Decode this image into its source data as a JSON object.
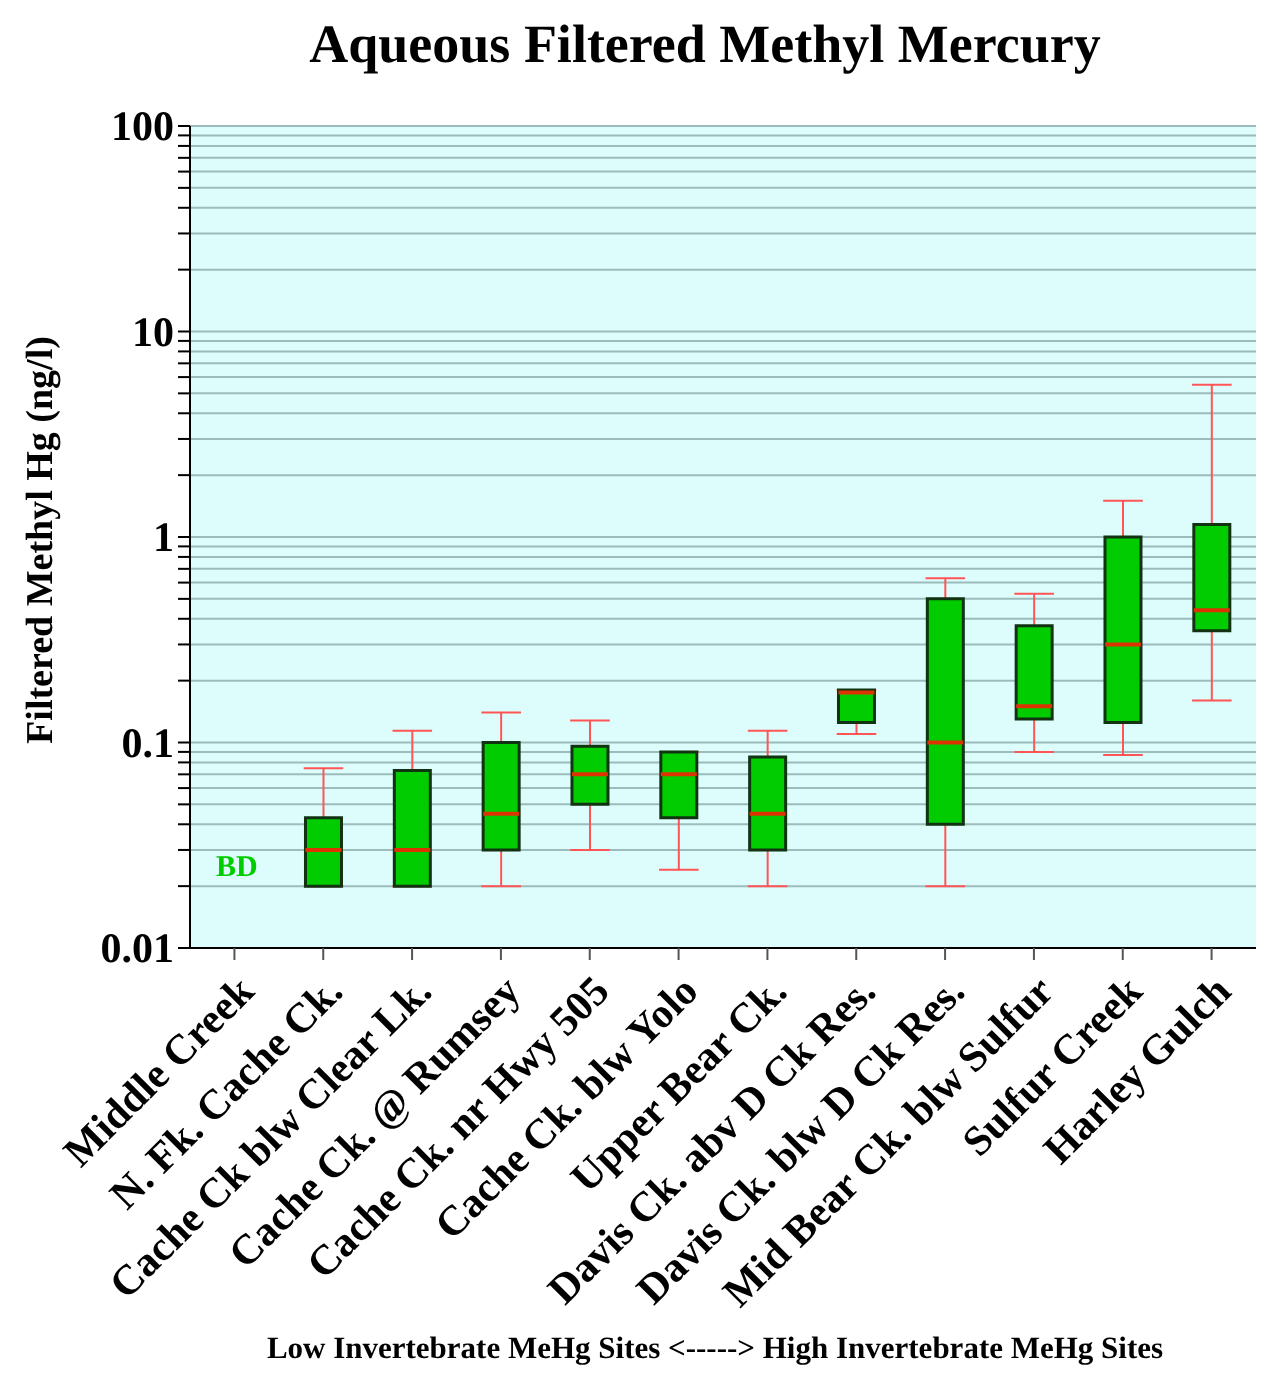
{
  "chart_data": {
    "type": "box",
    "title": "Aqueous Filtered Methyl Mercury",
    "xlabel": "Low Invertebrate MeHg Sites <-----> High Invertebrate MeHg Sites",
    "ylabel": "Filtered Methyl Hg (ng/l)",
    "categories": [
      "Middle Creek",
      "N. Fk. Cache Ck.",
      "Cache Ck blw Clear Lk.",
      "Cache Ck. @ Rumsey",
      "Cache Ck. nr Hwy 505",
      "Cache Ck. blw Yolo",
      "Upper Bear Ck.",
      "Davis Ck. abv D Ck Res.",
      "Davis Ck. blw D Ck Res.",
      "Mid Bear Ck. blw Sulfur",
      "Sulfur Creek",
      "Harley Gulch"
    ],
    "color": "#00cc00",
    "boxes": [
      null,
      {
        "low": 0.02,
        "q1": 0.02,
        "median": 0.03,
        "q3": 0.043,
        "high": 0.075
      },
      {
        "low": 0.02,
        "q1": 0.02,
        "median": 0.03,
        "q3": 0.073,
        "high": 0.114
      },
      {
        "low": 0.02,
        "q1": 0.03,
        "median": 0.045,
        "q3": 0.1,
        "high": 0.14
      },
      {
        "low": 0.03,
        "q1": 0.05,
        "median": 0.07,
        "q3": 0.096,
        "high": 0.128
      },
      {
        "low": 0.024,
        "q1": 0.043,
        "median": 0.07,
        "q3": 0.09,
        "high": 0.09
      },
      {
        "low": 0.02,
        "q1": 0.03,
        "median": 0.045,
        "q3": 0.085,
        "high": 0.114
      },
      {
        "low": 0.11,
        "q1": 0.125,
        "median": 0.175,
        "q3": 0.18,
        "high": 0.18
      },
      {
        "low": 0.02,
        "q1": 0.04,
        "median": 0.1,
        "q3": 0.5,
        "high": 0.63
      },
      {
        "low": 0.09,
        "q1": 0.13,
        "median": 0.15,
        "q3": 0.37,
        "high": 0.53
      },
      {
        "low": 0.087,
        "q1": 0.125,
        "median": 0.3,
        "q3": 1,
        "high": 1.5
      },
      {
        "low": 0.16,
        "q1": 0.35,
        "median": 0.44,
        "q3": 1.15,
        "high": 5.5
      }
    ],
    "annotations": [
      "BD"
    ],
    "log": "y",
    "ylim": [
      0.01,
      100
    ],
    "yticks": [
      0.01,
      {
        "value": 0.02,
        "label": null
      },
      {
        "value": 0.03,
        "label": null
      },
      {
        "value": 0.04,
        "label": null
      },
      {
        "value": 0.05,
        "label": null
      },
      {
        "value": 0.06,
        "label": null
      },
      {
        "value": 0.07,
        "label": null
      },
      {
        "value": 0.08,
        "label": null
      },
      {
        "value": 0.09,
        "label": null
      },
      0.1,
      {
        "value": 0.2,
        "label": null
      },
      {
        "value": 0.3,
        "label": null
      },
      {
        "value": 0.4,
        "label": null
      },
      {
        "value": 0.5,
        "label": null
      },
      {
        "value": 0.6,
        "label": null
      },
      {
        "value": 0.7,
        "label": null
      },
      {
        "value": 0.8,
        "label": null
      },
      {
        "value": 0.9,
        "label": null
      },
      1,
      {
        "value": 2,
        "label": null
      },
      {
        "value": 3,
        "label": null
      },
      {
        "value": 4,
        "label": null
      },
      {
        "value": 5,
        "label": null
      },
      {
        "value": 6,
        "label": null
      },
      {
        "value": 7,
        "label": null
      },
      {
        "value": 8,
        "label": null
      },
      {
        "value": 9,
        "label": null
      },
      10,
      {
        "value": 20,
        "label": null
      },
      {
        "value": 30,
        "label": null
      },
      {
        "value": 40,
        "label": null
      },
      {
        "value": 50,
        "label": null
      },
      {
        "value": 60,
        "label": null
      },
      {
        "value": 70,
        "label": null
      },
      {
        "value": 80,
        "label": null
      },
      {
        "value": 90,
        "label": null
      },
      100
    ],
    "grid": "y",
    "legend": false
  }
}
